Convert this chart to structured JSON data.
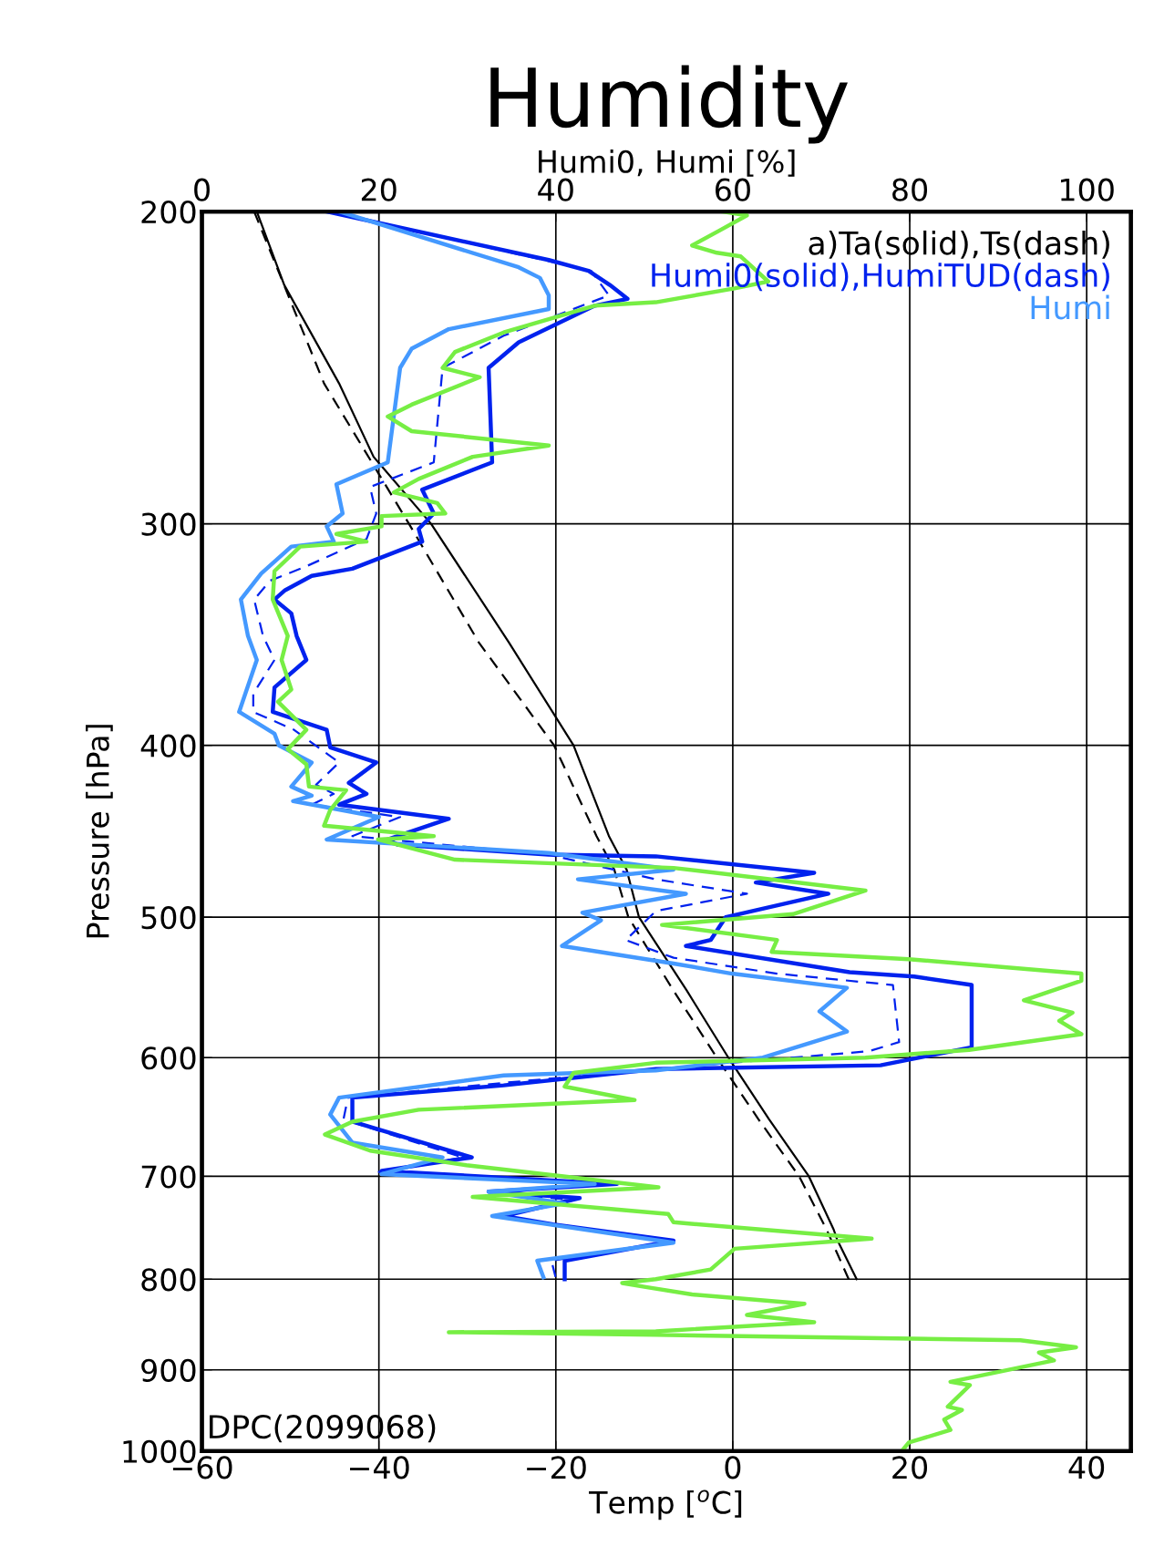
{
  "chart_data": {
    "type": "line",
    "title": "Humidity",
    "xlabel": "Temp [$^{o}$C]",
    "x2label": "Humi0, Humi [%]",
    "ylabel": "Pressure [hPa]",
    "log": "y",
    "grid": true,
    "legend": "top right",
    "xlim": [
      -60,
      45
    ],
    "xticks": [
      -60,
      -40,
      -20,
      0,
      20,
      40
    ],
    "x2lim": [
      0,
      105
    ],
    "x2ticks": [
      0,
      20,
      40,
      60,
      80,
      100
    ],
    "ylim": [
      1000,
      200
    ],
    "yticks": [
      200,
      300,
      400,
      500,
      600,
      700,
      800,
      900,
      1000
    ],
    "annotations": [
      "DPC(2099068)"
    ],
    "series": [
      {
        "name": "a)Ta(solid),Ts(dash)",
        "color": "#000000",
        "line_style": "solid",
        "x": [
          -53.8,
          -50.7,
          -44.5,
          -40.6,
          -34.1,
          -25.3,
          -18.0,
          -14.0,
          -12.0,
          -10.6,
          -5.2,
          -0.5,
          4.1,
          8.6,
          11.4,
          11.8,
          14.0
        ],
        "values": [
          200,
          220,
          250,
          275,
          300,
          350,
          400,
          450,
          470,
          500,
          550,
          600,
          650,
          700,
          750,
          760,
          800
        ]
      },
      {
        "color": "#000000",
        "line_style": "dashed",
        "x": [
          -54.1,
          -46.2,
          -36.6,
          -28.7,
          -20.2,
          -15.4,
          -13.4,
          -11.8,
          -6.7,
          -1.8,
          2.9,
          7.5,
          10.6,
          13.1
        ],
        "values": [
          200,
          250,
          300,
          350,
          400,
          450,
          470,
          500,
          550,
          600,
          650,
          700,
          750,
          800
        ]
      },
      {
        "name": "Humi0(solid),HumiTUD(dash)",
        "color": "#0022ee",
        "line_style": "solid",
        "axis": "x2",
        "x": [
          14.1,
          39.2,
          43.7,
          46.1,
          48.1,
          44.4,
          35.8,
          32.4,
          32.8,
          24.9,
          26.2,
          24.5,
          24.9,
          17.0,
          12.4,
          9.4,
          8.2,
          10.1,
          10.7,
          11.8,
          8.2,
          8.0,
          14.1,
          14.5,
          19.7,
          16.6,
          18.6,
          15.5,
          27.9,
          21.0,
          22.1,
          39.2,
          51.3,
          69.2,
          62.6,
          70.8,
          59.2,
          57.5,
          54.7,
          73.2,
          80.5,
          87.0,
          87.0,
          76.7,
          51.3,
          34.1,
          17.0,
          17.0,
          30.5,
          20.3,
          46.9,
          32.4,
          42.7,
          34.1,
          39.7,
          53.3,
          41.0,
          41.0
        ],
        "values": [
          200,
          213,
          216,
          220,
          224,
          226,
          237,
          245,
          277,
          287,
          296,
          302,
          307,
          318,
          321,
          327,
          331,
          337,
          347,
          358,
          371,
          383,
          392,
          401,
          409,
          420,
          426,
          432,
          440,
          452,
          455,
          461,
          462,
          472,
          478,
          485,
          500,
          515,
          519,
          537,
          540,
          546,
          592,
          606,
          609,
          622,
          632,
          652,
          683,
          695,
          707,
          714,
          720,
          737,
          745,
          761,
          781,
          800
        ]
      },
      {
        "color": "#0022ee",
        "line_style": "dashed",
        "axis": "x2",
        "x": [
          14.5,
          44.0,
          46.0,
          34.1,
          27.2,
          26.2,
          19.0,
          19.7,
          18.6,
          11.8,
          7.7,
          5.9,
          6.9,
          8.2,
          5.8,
          5.8,
          10.4,
          15.5,
          12.9,
          14.9,
          12.4,
          22.4,
          17.0,
          39.2,
          51.3,
          61.6,
          51.3,
          47.9,
          53.3,
          65.0,
          78.1,
          78.8,
          75.4,
          51.3,
          34.1,
          16.5,
          16.0,
          29.5,
          20.0,
          45.5,
          32.4,
          42.0,
          33.5,
          39.5,
          53.3,
          39.5,
          40.0
        ],
        "values": [
          200,
          216,
          223,
          235,
          245,
          277,
          286,
          296,
          306,
          317,
          323,
          331,
          347,
          358,
          374,
          383,
          392,
          409,
          421,
          426,
          432,
          439,
          450,
          461,
          476,
          485,
          496,
          515,
          527,
          538,
          546,
          588,
          595,
          609,
          620,
          632,
          650,
          683,
          696,
          707,
          714,
          722,
          737,
          745,
          762,
          781,
          799
        ]
      },
      {
        "name": "Humi",
        "color": "#4499ff",
        "line_style": "solid",
        "axis": "x2",
        "x": [
          15.5,
          35.8,
          38.2,
          39.2,
          39.2,
          27.9,
          23.7,
          22.4,
          21.0,
          15.2,
          15.9,
          14.1,
          14.9,
          10.1,
          6.7,
          4.4,
          5.2,
          6.2,
          4.2,
          8.2,
          8.7,
          12.4,
          10.1,
          12.4,
          10.3,
          20.0,
          14.1,
          39.2,
          53.3,
          42.5,
          54.7,
          43.0,
          45.1,
          40.7,
          53.3,
          59.9,
          72.9,
          69.8,
          72.9,
          63.4,
          51.3,
          34.1,
          15.5,
          14.5,
          17.0,
          27.2,
          20.3,
          44.4,
          32.4,
          41.0,
          32.8,
          39.2,
          53.3,
          37.9,
          38.6
        ],
        "values": [
          200,
          215,
          218,
          223,
          227,
          233,
          239,
          245,
          277,
          285,
          296,
          301,
          307,
          309,
          320,
          331,
          347,
          358,
          383,
          394,
          400,
          409,
          422,
          427,
          430,
          439,
          452,
          460,
          470,
          476,
          485,
          497,
          502,
          519,
          531,
          538,
          548,
          565,
          580,
          600,
          610,
          614,
          632,
          646,
          670,
          683,
          698,
          707,
          714,
          725,
          737,
          745,
          763,
          781,
          798
        ]
      },
      {
        "color": "#77ee44",
        "line_style": "solid",
        "axis": "x2",
        "x": [
          58.9,
          61.6,
          58.5,
          55.4,
          58.2,
          60.9,
          64.0,
          60.2,
          51.3,
          44.4,
          34.1,
          28.6,
          27.2,
          31.4,
          23.7,
          21.0,
          23.7,
          39.2,
          30.6,
          24.5,
          21.7,
          26.6,
          27.5,
          20.3,
          20.3,
          15.2,
          18.6,
          11.1,
          8.2,
          8.0,
          9.7,
          9.0,
          10.1,
          8.6,
          11.8,
          9.7,
          11.8,
          12.1,
          16.3,
          14.5,
          13.8,
          26.2,
          19.9,
          28.6,
          53.3,
          75.0,
          66.8,
          52.0,
          65.0,
          64.4,
          79.9,
          95.6,
          99.4,
          99.4,
          92.9,
          98.4,
          96.9,
          99.4,
          86.7,
          75.0,
          51.3,
          42.0,
          41.0,
          48.9,
          24.5,
          17.0,
          13.9,
          19.0,
          29.9,
          51.6,
          30.6,
          52.7,
          53.3,
          75.7,
          60.2,
          57.5,
          51.3,
          47.5,
          50.0,
          55.4,
          68.1,
          61.6,
          69.2,
          51.3,
          27.9,
          51.3,
          92.5,
          98.8,
          94.6,
          96.3,
          84.6,
          86.8,
          84.3,
          85.9,
          83.9,
          84.6,
          79.9,
          79.1
        ],
        "values": [
          200,
          201,
          205,
          209,
          211,
          212,
          219,
          221,
          225,
          226,
          234,
          240,
          245,
          248,
          257,
          261,
          266,
          271,
          275,
          283,
          288,
          292,
          296,
          297,
          301,
          304,
          307,
          309,
          319,
          331,
          347,
          358,
          372,
          378,
          392,
          402,
          410,
          422,
          424,
          435,
          444,
          450,
          452,
          464,
          469,
          483,
          498,
          505,
          515,
          523,
          528,
          536,
          538,
          543,
          557,
          566,
          572,
          582,
          594,
          600,
          604,
          612,
          623,
          634,
          642,
          652,
          663,
          677,
          690,
          710,
          719,
          735,
          743,
          759,
          769,
          790,
          800,
          804,
          808,
          816,
          826,
          838,
          846,
          856,
          857,
          860,
          866,
          874,
          880,
          889,
          914,
          918,
          944,
          948,
          960,
          973,
          989,
          1000
        ]
      }
    ]
  }
}
